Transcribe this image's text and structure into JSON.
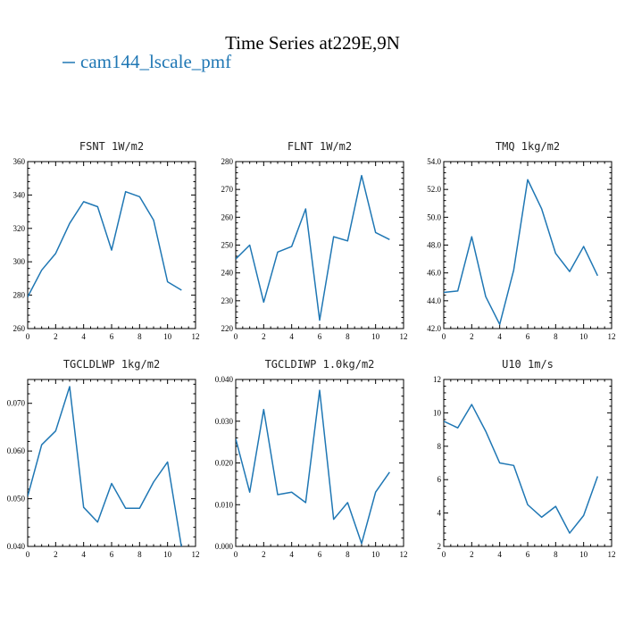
{
  "figure": {
    "title": "Time Series at229E,9N",
    "legend_label": "cam144_lscale_pmf",
    "series_color": "#1f77b4"
  },
  "chart_data": [
    {
      "type": "line",
      "title": "FSNT   1W/m2",
      "x": [
        0,
        1,
        2,
        3,
        4,
        5,
        6,
        7,
        8,
        9,
        10,
        11
      ],
      "series": [
        {
          "name": "cam144_lscale_pmf",
          "values": [
            279,
            295,
            305,
            323,
            336,
            333,
            307,
            342,
            339,
            325,
            288,
            283
          ]
        }
      ],
      "xlim": [
        0,
        12
      ],
      "ylim": [
        260,
        360
      ],
      "xticks": [
        0,
        2,
        4,
        6,
        8,
        10,
        12
      ],
      "yticks": [
        260,
        280,
        300,
        320,
        340,
        360
      ],
      "ytick_labels": [
        "260",
        "280",
        "300",
        "320",
        "340",
        "360"
      ]
    },
    {
      "type": "line",
      "title": "FLNT   1W/m2",
      "x": [
        0,
        1,
        2,
        3,
        4,
        5,
        6,
        7,
        8,
        9,
        10,
        11
      ],
      "series": [
        {
          "name": "cam144_lscale_pmf",
          "values": [
            245,
            250,
            229.5,
            247.5,
            249.5,
            263,
            223,
            253,
            251.5,
            275,
            254.5,
            252
          ]
        }
      ],
      "xlim": [
        0,
        12
      ],
      "ylim": [
        220,
        280
      ],
      "xticks": [
        0,
        2,
        4,
        6,
        8,
        10,
        12
      ],
      "yticks": [
        220,
        230,
        240,
        250,
        260,
        270,
        280
      ],
      "ytick_labels": [
        "220",
        "230",
        "240",
        "250",
        "260",
        "270",
        "280"
      ]
    },
    {
      "type": "line",
      "title": "TMQ   1kg/m2",
      "x": [
        0,
        1,
        2,
        3,
        4,
        5,
        6,
        7,
        8,
        9,
        10,
        11
      ],
      "series": [
        {
          "name": "cam144_lscale_pmf",
          "values": [
            44.6,
            44.7,
            48.6,
            44.3,
            42.3,
            46.2,
            52.7,
            50.6,
            47.4,
            46.1,
            47.9,
            45.8
          ]
        }
      ],
      "xlim": [
        0,
        12
      ],
      "ylim": [
        42,
        54
      ],
      "xticks": [
        0,
        2,
        4,
        6,
        8,
        10,
        12
      ],
      "yticks": [
        42,
        44,
        46,
        48,
        50,
        52,
        54
      ],
      "ytick_labels": [
        "42.0",
        "44.0",
        "46.0",
        "48.0",
        "50.0",
        "52.0",
        "54.0"
      ]
    },
    {
      "type": "line",
      "title": "TGCLDLWP   1kg/m2",
      "x": [
        0,
        1,
        2,
        3,
        4,
        5,
        6,
        7,
        8,
        9,
        10,
        11
      ],
      "series": [
        {
          "name": "cam144_lscale_pmf",
          "values": [
            0.0505,
            0.0613,
            0.0642,
            0.0735,
            0.0482,
            0.0451,
            0.0532,
            0.048,
            0.048,
            0.0535,
            0.0577,
            0.0398
          ]
        }
      ],
      "xlim": [
        0,
        12
      ],
      "ylim": [
        0.04,
        0.075
      ],
      "xticks": [
        0,
        2,
        4,
        6,
        8,
        10,
        12
      ],
      "yticks": [
        0.04,
        0.05,
        0.06,
        0.07
      ],
      "ytick_labels": [
        "0.040",
        "0.050",
        "0.060",
        "0.070"
      ]
    },
    {
      "type": "line",
      "title": "TGCLDIWP   1.0kg/m2",
      "x": [
        0,
        1,
        2,
        3,
        4,
        5,
        6,
        7,
        8,
        9,
        10,
        11
      ],
      "series": [
        {
          "name": "cam144_lscale_pmf",
          "values": [
            0.0258,
            0.013,
            0.0328,
            0.0124,
            0.013,
            0.0105,
            0.0374,
            0.0065,
            0.0105,
            0.0007,
            0.013,
            0.0178
          ]
        }
      ],
      "xlim": [
        0,
        12
      ],
      "ylim": [
        0,
        0.04
      ],
      "xticks": [
        0,
        2,
        4,
        6,
        8,
        10,
        12
      ],
      "yticks": [
        0,
        0.01,
        0.02,
        0.03,
        0.04
      ],
      "ytick_labels": [
        "0.000",
        "0.010",
        "0.020",
        "0.030",
        "0.040"
      ]
    },
    {
      "type": "line",
      "title": "U10   1m/s",
      "x": [
        0,
        1,
        2,
        3,
        4,
        5,
        6,
        7,
        8,
        9,
        10,
        11
      ],
      "series": [
        {
          "name": "cam144_lscale_pmf",
          "values": [
            9.5,
            9.1,
            10.5,
            8.9,
            7.0,
            6.85,
            4.5,
            3.75,
            4.4,
            2.8,
            3.85,
            6.2
          ]
        }
      ],
      "xlim": [
        0,
        12
      ],
      "ylim": [
        2,
        12
      ],
      "xticks": [
        0,
        2,
        4,
        6,
        8,
        10,
        12
      ],
      "yticks": [
        2,
        4,
        6,
        8,
        10,
        12
      ],
      "ytick_labels": [
        "2",
        "4",
        "6",
        "8",
        "10",
        "12"
      ]
    }
  ]
}
